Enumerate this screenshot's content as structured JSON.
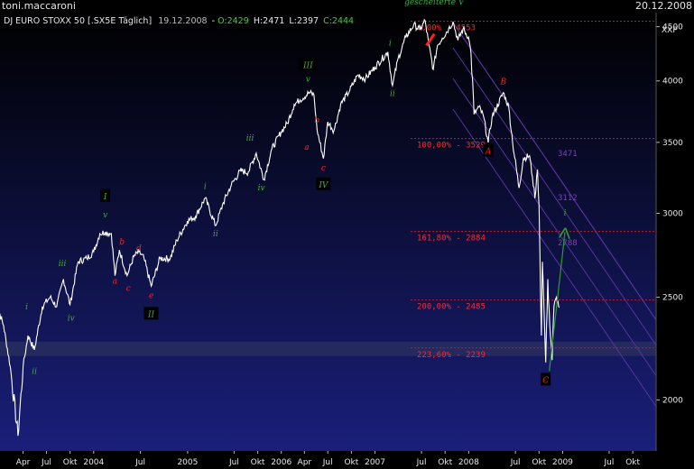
{
  "header": {
    "author": "toni.maccaroni",
    "date": "20.12.2008",
    "symbol_label": "DJ EURO STOXX 50 [.SX5E  Täglich]",
    "bar_date": "19.12.2008",
    "open": "O:2429",
    "high": "H:2471",
    "low": "L:2397",
    "close": "C:2444",
    "instrument": "XXP"
  },
  "colors": {
    "background_top": "#000000",
    "background_bottom": "#1a1f7a",
    "price_line": "#ffffff",
    "fib_line": "#c0202a",
    "fib_text": "#ff2a2a",
    "channel_line": "#55359a",
    "channel_text": "#7a42b8",
    "wave_green": "#3fae3f",
    "wave_red": "#ff2020",
    "arrow": "#2f9a2f"
  },
  "chart_data": {
    "type": "line",
    "title": "DJ EURO STOXX 50 [.SX5E  Täglich]",
    "frequency": "daily",
    "y_scale": "log",
    "ylim": [
      1790,
      4640
    ],
    "y_ticks": [
      2000,
      2500,
      3000,
      3500,
      4000,
      4500
    ],
    "x_range": [
      "2003-01-01",
      "2009-12-31"
    ],
    "x_tick_labels": [
      {
        "date": "2003-04-01",
        "label": "Apr"
      },
      {
        "date": "2003-07-01",
        "label": "Jul"
      },
      {
        "date": "2003-10-01",
        "label": "Okt"
      },
      {
        "date": "2004-01-01",
        "label": "2004"
      },
      {
        "date": "2004-07-01",
        "label": "Jul"
      },
      {
        "date": "2005-01-01",
        "label": "2005"
      },
      {
        "date": "2005-07-01",
        "label": "Jul"
      },
      {
        "date": "2005-10-01",
        "label": "Okt"
      },
      {
        "date": "2006-01-01",
        "label": "2006"
      },
      {
        "date": "2006-04-01",
        "label": "Apr"
      },
      {
        "date": "2006-07-01",
        "label": "Jul"
      },
      {
        "date": "2006-10-01",
        "label": "Okt"
      },
      {
        "date": "2007-01-01",
        "label": "2007"
      },
      {
        "date": "2007-07-01",
        "label": "Jul"
      },
      {
        "date": "2007-10-01",
        "label": "Okt"
      },
      {
        "date": "2008-01-01",
        "label": "2008"
      },
      {
        "date": "2008-07-01",
        "label": "Jul"
      },
      {
        "date": "2008-10-01",
        "label": "Okt"
      },
      {
        "date": "2009-01-01",
        "label": "2009"
      },
      {
        "date": "2009-07-01",
        "label": "Jul"
      },
      {
        "date": "2009-10-01",
        "label": "Okt"
      }
    ],
    "series": [
      {
        "points": [
          [
            "2002-12-15",
            2480
          ],
          [
            "2003-01-15",
            2350
          ],
          [
            "2003-02-10",
            2150
          ],
          [
            "2003-03-12",
            1850
          ],
          [
            "2003-04-01",
            2150
          ],
          [
            "2003-04-20",
            2300
          ],
          [
            "2003-05-15",
            2230
          ],
          [
            "2003-06-15",
            2450
          ],
          [
            "2003-07-15",
            2500
          ],
          [
            "2003-08-10",
            2450
          ],
          [
            "2003-09-05",
            2600
          ],
          [
            "2003-10-01",
            2460
          ],
          [
            "2003-11-01",
            2700
          ],
          [
            "2003-12-05",
            2720
          ],
          [
            "2004-01-01",
            2760
          ],
          [
            "2004-01-25",
            2870
          ],
          [
            "2004-02-15",
            2880
          ],
          [
            "2004-03-10",
            2870
          ],
          [
            "2004-03-24",
            2620
          ],
          [
            "2004-04-10",
            2770
          ],
          [
            "2004-05-10",
            2620
          ],
          [
            "2004-06-05",
            2730
          ],
          [
            "2004-06-25",
            2760
          ],
          [
            "2004-07-15",
            2720
          ],
          [
            "2004-08-12",
            2560
          ],
          [
            "2004-09-15",
            2720
          ],
          [
            "2004-10-25",
            2720
          ],
          [
            "2004-11-20",
            2830
          ],
          [
            "2004-12-31",
            2950
          ],
          [
            "2005-02-01",
            2980
          ],
          [
            "2005-03-10",
            3100
          ],
          [
            "2005-04-20",
            2920
          ],
          [
            "2005-05-20",
            3070
          ],
          [
            "2005-06-20",
            3190
          ],
          [
            "2005-07-25",
            3290
          ],
          [
            "2005-08-25",
            3280
          ],
          [
            "2005-09-25",
            3420
          ],
          [
            "2005-10-25",
            3230
          ],
          [
            "2005-11-25",
            3450
          ],
          [
            "2005-12-31",
            3580
          ],
          [
            "2006-01-25",
            3650
          ],
          [
            "2006-02-20",
            3800
          ],
          [
            "2006-03-15",
            3840
          ],
          [
            "2006-04-20",
            3900
          ],
          [
            "2006-05-08",
            3880
          ],
          [
            "2006-05-20",
            3600
          ],
          [
            "2006-06-14",
            3380
          ],
          [
            "2006-07-01",
            3660
          ],
          [
            "2006-07-25",
            3590
          ],
          [
            "2006-08-20",
            3800
          ],
          [
            "2006-09-25",
            3920
          ],
          [
            "2006-10-25",
            4050
          ],
          [
            "2006-11-25",
            4020
          ],
          [
            "2006-12-31",
            4120
          ],
          [
            "2007-02-20",
            4260
          ],
          [
            "2007-03-10",
            3960
          ],
          [
            "2007-04-01",
            4200
          ],
          [
            "2007-05-01",
            4400
          ],
          [
            "2007-06-01",
            4520
          ],
          [
            "2007-06-25",
            4470
          ],
          [
            "2007-07-15",
            4560
          ],
          [
            "2007-07-30",
            4320
          ],
          [
            "2007-08-16",
            4100
          ],
          [
            "2007-09-01",
            4320
          ],
          [
            "2007-09-20",
            4390
          ],
          [
            "2007-10-15",
            4480
          ],
          [
            "2007-11-01",
            4550
          ],
          [
            "2007-11-20",
            4370
          ],
          [
            "2007-12-10",
            4480
          ],
          [
            "2007-12-31",
            4400
          ],
          [
            "2008-01-10",
            4250
          ],
          [
            "2008-01-22",
            3720
          ],
          [
            "2008-02-10",
            3780
          ],
          [
            "2008-02-28",
            3700
          ],
          [
            "2008-03-17",
            3500
          ],
          [
            "2008-04-01",
            3700
          ],
          [
            "2008-05-15",
            3900
          ],
          [
            "2008-06-05",
            3780
          ],
          [
            "2008-06-20",
            3500
          ],
          [
            "2008-07-15",
            3170
          ],
          [
            "2008-08-01",
            3380
          ],
          [
            "2008-08-25",
            3400
          ],
          [
            "2008-09-05",
            3250
          ],
          [
            "2008-09-15",
            3100
          ],
          [
            "2008-09-25",
            3300
          ],
          [
            "2008-10-01",
            3050
          ],
          [
            "2008-10-10",
            2300
          ],
          [
            "2008-10-14",
            2700
          ],
          [
            "2008-10-20",
            2450
          ],
          [
            "2008-10-27",
            2170
          ],
          [
            "2008-11-04",
            2600
          ],
          [
            "2008-11-12",
            2350
          ],
          [
            "2008-11-21",
            2180
          ],
          [
            "2008-11-28",
            2450
          ],
          [
            "2008-12-08",
            2500
          ],
          [
            "2008-12-19",
            2444
          ]
        ]
      }
    ],
    "fib_levels": [
      {
        "value": 4553,
        "label": "0,00% - 4553"
      },
      {
        "value": 3529,
        "label": "100,00% - 3529"
      },
      {
        "value": 2884,
        "label": "161,80% - 2884"
      },
      {
        "value": 2485,
        "label": "200,00% - 2485"
      },
      {
        "value": 2239,
        "label": "223,60% - 2239"
      }
    ],
    "channel_labels": [
      {
        "date": "2008-09-20",
        "value": 3471,
        "label": "3471"
      },
      {
        "date": "2008-09-20",
        "value": 3112,
        "label": "3112"
      },
      {
        "date": "2008-09-20",
        "value": 2788,
        "label": "2788"
      }
    ],
    "annotations": [
      {
        "text": "gescheiterte V",
        "date": "2007-08-20",
        "value": 4730,
        "color": "green"
      },
      {
        "text": "i",
        "date": "2003-04-15",
        "value": 2440,
        "color": "green"
      },
      {
        "text": "ii",
        "date": "2003-05-15",
        "value": 2120,
        "color": "green"
      },
      {
        "text": "iii",
        "date": "2003-09-01",
        "value": 2680,
        "color": "green"
      },
      {
        "text": "iv",
        "date": "2003-10-05",
        "value": 2380,
        "color": "green"
      },
      {
        "text": "v",
        "date": "2004-02-15",
        "value": 2980,
        "color": "green"
      },
      {
        "text": "I",
        "date": "2004-02-15",
        "value": 3100,
        "color": "green",
        "boxed": true
      },
      {
        "text": "a",
        "date": "2004-03-24",
        "value": 2580,
        "color": "red"
      },
      {
        "text": "b",
        "date": "2004-04-20",
        "value": 2810,
        "color": "red"
      },
      {
        "text": "c",
        "date": "2004-05-15",
        "value": 2540,
        "color": "red"
      },
      {
        "text": "d",
        "date": "2004-06-25",
        "value": 2770,
        "color": "red"
      },
      {
        "text": "e",
        "date": "2004-08-12",
        "value": 2500,
        "color": "red"
      },
      {
        "text": "II",
        "date": "2004-08-12",
        "value": 2400,
        "color": "green",
        "boxed": true
      },
      {
        "text": "i",
        "date": "2005-03-10",
        "value": 3170,
        "color": "green"
      },
      {
        "text": "ii",
        "date": "2005-04-20",
        "value": 2860,
        "color": "green"
      },
      {
        "text": "iii",
        "date": "2005-09-01",
        "value": 3520,
        "color": "green"
      },
      {
        "text": "iv",
        "date": "2005-10-15",
        "value": 3160,
        "color": "green"
      },
      {
        "text": "v",
        "date": "2006-04-15",
        "value": 4000,
        "color": "green"
      },
      {
        "text": "III",
        "date": "2006-04-15",
        "value": 4120,
        "color": "green",
        "boxed": true
      },
      {
        "text": "b",
        "date": "2006-05-20",
        "value": 3660,
        "color": "red"
      },
      {
        "text": "a",
        "date": "2006-04-10",
        "value": 3450,
        "color": "red"
      },
      {
        "text": "c",
        "date": "2006-06-14",
        "value": 3300,
        "color": "red"
      },
      {
        "text": "IV",
        "date": "2006-06-14",
        "value": 3180,
        "color": "green",
        "boxed": true
      },
      {
        "text": "i",
        "date": "2007-03-01",
        "value": 4330,
        "color": "green"
      },
      {
        "text": "ii",
        "date": "2007-03-10",
        "value": 3880,
        "color": "green"
      },
      {
        "text": "B",
        "date": "2008-05-15",
        "value": 3980,
        "color": "red"
      },
      {
        "text": "A",
        "date": "2008-03-17",
        "value": 3420,
        "color": "red",
        "boxed": true
      },
      {
        "text": "C",
        "date": "2008-10-27",
        "value": 2080,
        "color": "red",
        "boxed": true
      },
      {
        "text": "i",
        "date": "2009-01-10",
        "value": 2990,
        "color": "green"
      }
    ]
  }
}
